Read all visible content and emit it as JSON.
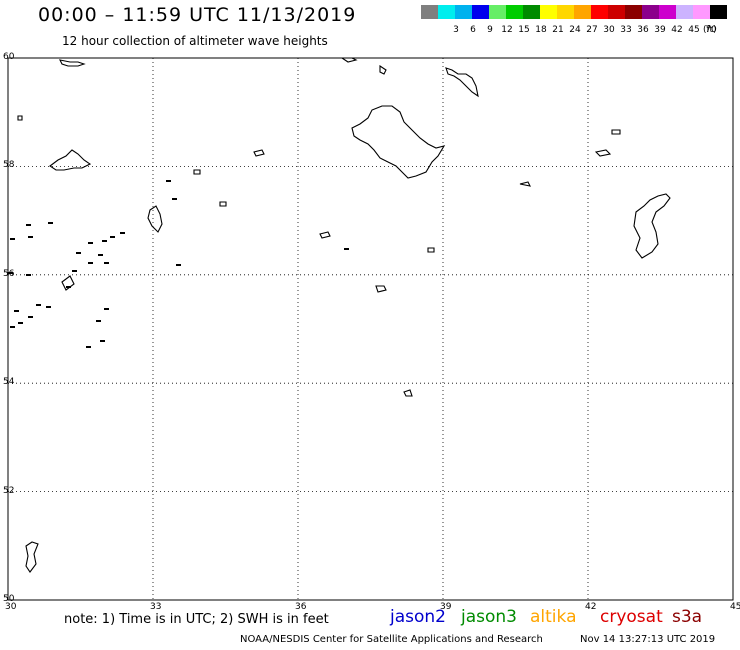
{
  "header": {
    "title": "00:00 – 11:59 UTC 11/13/2019",
    "subtitle": "12 hour collection of altimeter wave heights"
  },
  "legend": {
    "unit": "(ft)",
    "bins": [
      {
        "label": "",
        "color": "#7f7f7f"
      },
      {
        "label": "3",
        "color": "#00eeee"
      },
      {
        "label": "6",
        "color": "#00b2ee"
      },
      {
        "label": "9",
        "color": "#0000ee"
      },
      {
        "label": "12",
        "color": "#66ee66"
      },
      {
        "label": "15",
        "color": "#00cd00"
      },
      {
        "label": "18",
        "color": "#008b00"
      },
      {
        "label": "21",
        "color": "#ffff00"
      },
      {
        "label": "24",
        "color": "#ffd700"
      },
      {
        "label": "27",
        "color": "#ffa500"
      },
      {
        "label": "30",
        "color": "#ff0000"
      },
      {
        "label": "33",
        "color": "#cd0000"
      },
      {
        "label": "36",
        "color": "#8b0000"
      },
      {
        "label": "39",
        "color": "#8b008b"
      },
      {
        "label": "42",
        "color": "#cd00cd"
      },
      {
        "label": "45",
        "color": "#ccb3ff"
      },
      {
        "label": "70",
        "color": "#ff99ff"
      },
      {
        "label": "",
        "color": "#000000"
      }
    ]
  },
  "map": {
    "lon_ticks": [
      "30",
      "33",
      "36",
      "39",
      "42",
      "45"
    ],
    "lat_ticks": [
      "60",
      "58",
      "56",
      "54",
      "52",
      "50"
    ],
    "lon_range": [
      30,
      45
    ],
    "lat_range": [
      50,
      60
    ]
  },
  "note": "note: 1) Time is in UTC; 2) SWH is in feet",
  "satellites": [
    {
      "name": "jason2",
      "color": "#0000cc"
    },
    {
      "name": "jason3",
      "color": "#008b00"
    },
    {
      "name": "altika",
      "color": "#ffa500"
    },
    {
      "name": "cryosat",
      "color": "#dd0000"
    },
    {
      "name": "s3a",
      "color": "#8b0000"
    }
  ],
  "footer": {
    "org": "NOAA/NESDIS Center for Satellite Applications and Research",
    "timestamp": "Nov 14 13:27:13 UTC 2019"
  }
}
